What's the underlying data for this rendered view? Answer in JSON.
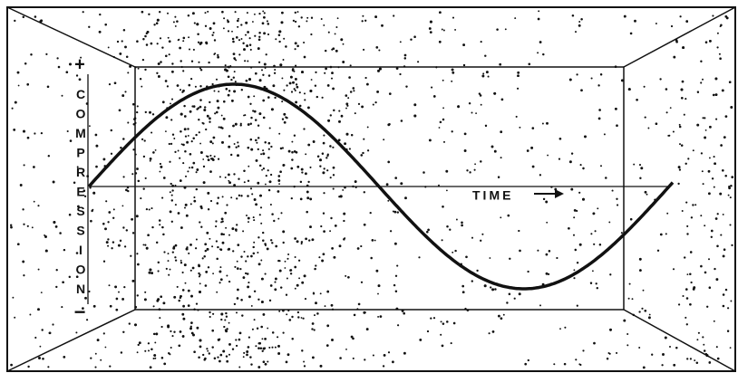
{
  "labels": {
    "plus": "+",
    "axis": "COMPRESSION",
    "minus": "−",
    "time": "TIME"
  }
}
